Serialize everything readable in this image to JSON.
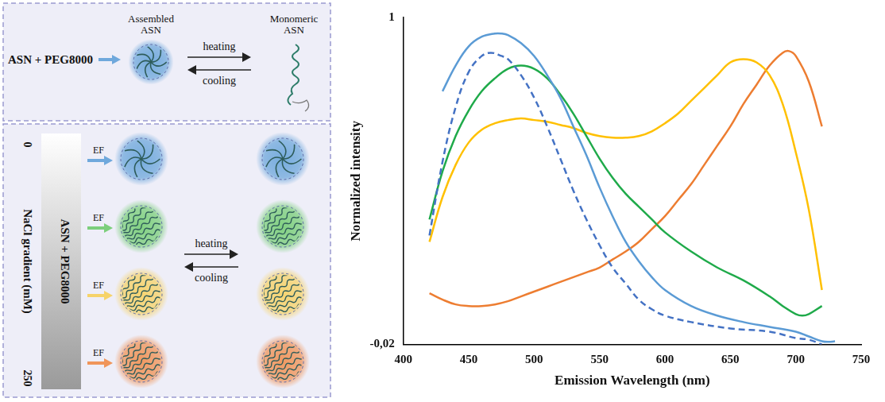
{
  "diagram": {
    "top_panel": {
      "input": "ASN + PEG8000",
      "left_state": "Assembled ASN",
      "right_state": "Monomeric ASN",
      "forward": "heating",
      "backward": "cooling",
      "color": "#6fa8dc"
    },
    "bottom_panel": {
      "bar_label": "ASN + PEG8000",
      "axis_title": "NaCl gradient (mM)",
      "gradient_start": 0,
      "gradient_end": 250,
      "forward": "heating",
      "backward": "cooling",
      "rows": [
        {
          "label": "EF",
          "color": "#6fa8dc"
        },
        {
          "label": "EF",
          "color": "#7ccf7c"
        },
        {
          "label": "EF",
          "color": "#f6d36a"
        },
        {
          "label": "EF",
          "color": "#f0955a"
        }
      ]
    }
  },
  "chart_data": {
    "type": "line",
    "x_label": "Emission Wavelength (nm)",
    "y_label": "Normalized intensity",
    "xlim": [
      400,
      750
    ],
    "xticks": [
      400,
      450,
      500,
      550,
      600,
      650,
      700,
      750
    ],
    "ylim": [
      -0.02,
      1
    ],
    "yticks": [
      {
        "value": -0.02,
        "label": "-0,02"
      },
      1
    ],
    "grid": false,
    "series": [
      {
        "color": "#5b9bd5",
        "line_style": "solid",
        "x": [
          430,
          440,
          450,
          460,
          470,
          475,
          480,
          490,
          500,
          510,
          520,
          530,
          540,
          550,
          560,
          570,
          580,
          590,
          600,
          620,
          640,
          660,
          680,
          700,
          710,
          720,
          725,
          730
        ],
        "values": [
          0.77,
          0.85,
          0.91,
          0.94,
          0.95,
          0.95,
          0.945,
          0.92,
          0.88,
          0.82,
          0.75,
          0.66,
          0.57,
          0.47,
          0.38,
          0.3,
          0.24,
          0.19,
          0.15,
          0.1,
          0.07,
          0.05,
          0.035,
          0.02,
          0.005,
          -0.01,
          -0.012,
          -0.01
        ]
      },
      {
        "color": "#4472c4",
        "line_style": "dashed",
        "x": [
          420,
          430,
          440,
          450,
          460,
          467,
          475,
          480,
          490,
          500,
          510,
          520,
          530,
          540,
          550,
          560,
          570,
          580,
          590,
          600,
          620,
          650,
          680,
          700,
          710,
          720
        ],
        "values": [
          0.32,
          0.55,
          0.72,
          0.83,
          0.88,
          0.89,
          0.88,
          0.87,
          0.82,
          0.75,
          0.66,
          0.56,
          0.46,
          0.37,
          0.29,
          0.22,
          0.17,
          0.12,
          0.09,
          0.07,
          0.05,
          0.03,
          0.02,
          0.0,
          -0.005,
          -0.02
        ]
      },
      {
        "color": "#1faa4a",
        "line_style": "solid",
        "x": [
          420,
          430,
          440,
          450,
          460,
          470,
          480,
          490,
          500,
          510,
          520,
          530,
          540,
          550,
          560,
          570,
          580,
          590,
          600,
          620,
          640,
          660,
          680,
          690,
          700,
          705,
          710,
          720
        ],
        "values": [
          0.37,
          0.52,
          0.63,
          0.71,
          0.77,
          0.81,
          0.84,
          0.85,
          0.84,
          0.81,
          0.76,
          0.7,
          0.63,
          0.56,
          0.5,
          0.45,
          0.41,
          0.37,
          0.33,
          0.27,
          0.22,
          0.18,
          0.13,
          0.1,
          0.075,
          0.07,
          0.075,
          0.1
        ]
      },
      {
        "color": "#ffc000",
        "line_style": "solid",
        "x": [
          420,
          430,
          440,
          450,
          460,
          470,
          480,
          490,
          500,
          510,
          520,
          530,
          540,
          550,
          560,
          570,
          580,
          590,
          600,
          610,
          620,
          630,
          640,
          650,
          660,
          670,
          680,
          690,
          700,
          710,
          720
        ],
        "values": [
          0.3,
          0.44,
          0.54,
          0.61,
          0.65,
          0.67,
          0.68,
          0.685,
          0.68,
          0.675,
          0.665,
          0.655,
          0.64,
          0.63,
          0.625,
          0.625,
          0.63,
          0.645,
          0.67,
          0.7,
          0.74,
          0.78,
          0.82,
          0.86,
          0.87,
          0.86,
          0.82,
          0.73,
          0.58,
          0.4,
          0.15
        ]
      },
      {
        "color": "#ed7d31",
        "line_style": "solid",
        "x": [
          420,
          430,
          440,
          450,
          460,
          470,
          480,
          490,
          500,
          510,
          520,
          530,
          540,
          550,
          560,
          570,
          580,
          590,
          600,
          610,
          620,
          630,
          640,
          650,
          660,
          670,
          680,
          690,
          695,
          700,
          710,
          720
        ],
        "values": [
          0.14,
          0.12,
          0.105,
          0.1,
          0.1,
          0.105,
          0.115,
          0.13,
          0.145,
          0.16,
          0.175,
          0.19,
          0.205,
          0.22,
          0.245,
          0.27,
          0.3,
          0.34,
          0.38,
          0.43,
          0.48,
          0.54,
          0.6,
          0.66,
          0.73,
          0.79,
          0.85,
          0.89,
          0.895,
          0.88,
          0.8,
          0.66
        ]
      }
    ]
  }
}
